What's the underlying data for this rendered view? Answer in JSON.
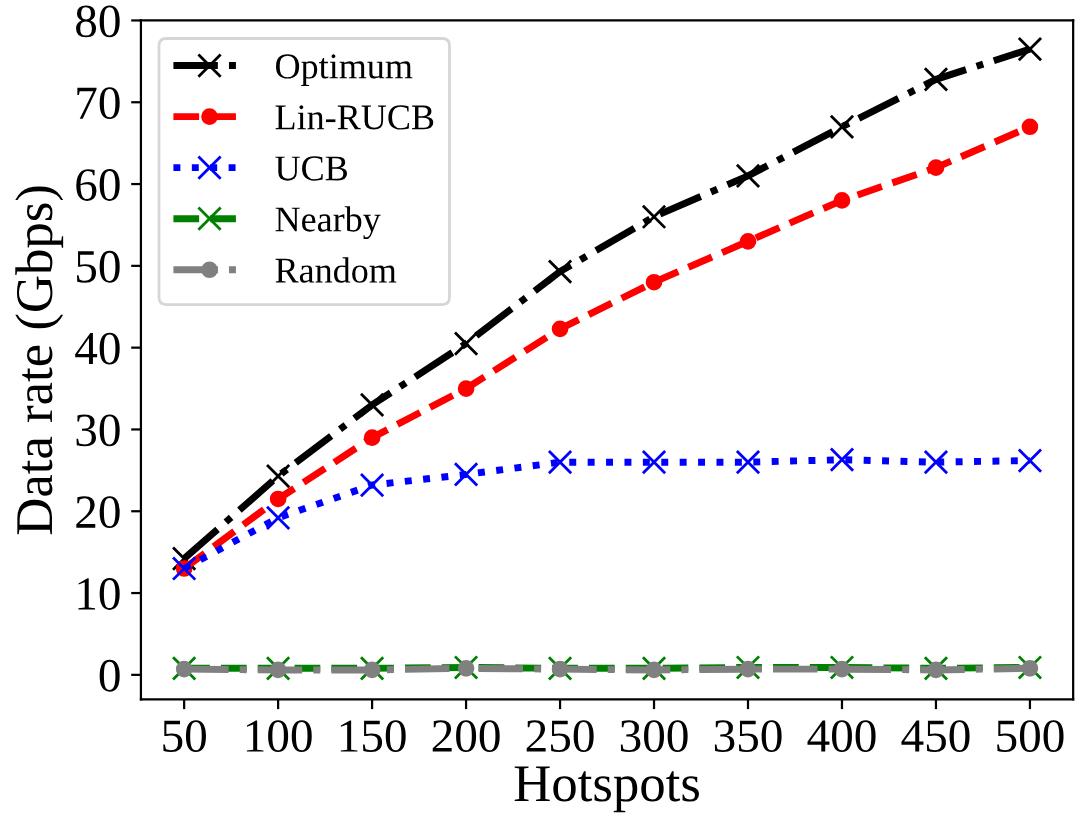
{
  "chart_data": {
    "type": "line",
    "xlabel": "Hotspots",
    "ylabel": "Data rate (Gbps)",
    "x": [
      50,
      100,
      150,
      200,
      250,
      300,
      350,
      400,
      450,
      500
    ],
    "xlim": [
      27,
      523
    ],
    "xticks": [
      50,
      100,
      150,
      200,
      250,
      300,
      350,
      400,
      450,
      500
    ],
    "ylim": [
      -3,
      80
    ],
    "yticks": [
      0,
      10,
      20,
      30,
      40,
      50,
      60,
      70,
      80
    ],
    "grid": false,
    "legend": "top left",
    "series": [
      {
        "name": "Optimum",
        "color": "#000000",
        "marker": "cross",
        "line_style": "dashdot",
        "values": [
          14.2,
          24.3,
          33,
          40.5,
          49.3,
          56,
          61,
          67,
          72.8,
          76.5
        ]
      },
      {
        "name": "Lin-RUCB",
        "color": "#ff0000",
        "marker": "circle",
        "line_style": "dashed",
        "values": [
          13,
          21.5,
          29,
          35,
          42.3,
          48,
          53,
          58,
          62,
          67
        ]
      },
      {
        "name": "UCB",
        "color": "#0000ff",
        "marker": "cross",
        "line_style": "dotted",
        "values": [
          13,
          19.2,
          23.2,
          24.5,
          26,
          26,
          26,
          26.3,
          26,
          26.2
        ]
      },
      {
        "name": "Nearby",
        "color": "#008000",
        "marker": "cross",
        "line_style": "dashed",
        "values": [
          0.8,
          0.8,
          0.8,
          0.9,
          0.8,
          0.8,
          0.9,
          0.9,
          0.8,
          0.9
        ]
      },
      {
        "name": "Random",
        "color": "#808080",
        "marker": "circle",
        "line_style": "dashdot",
        "values": [
          0.7,
          0.6,
          0.6,
          0.8,
          0.7,
          0.6,
          0.7,
          0.7,
          0.6,
          0.8
        ]
      }
    ]
  }
}
